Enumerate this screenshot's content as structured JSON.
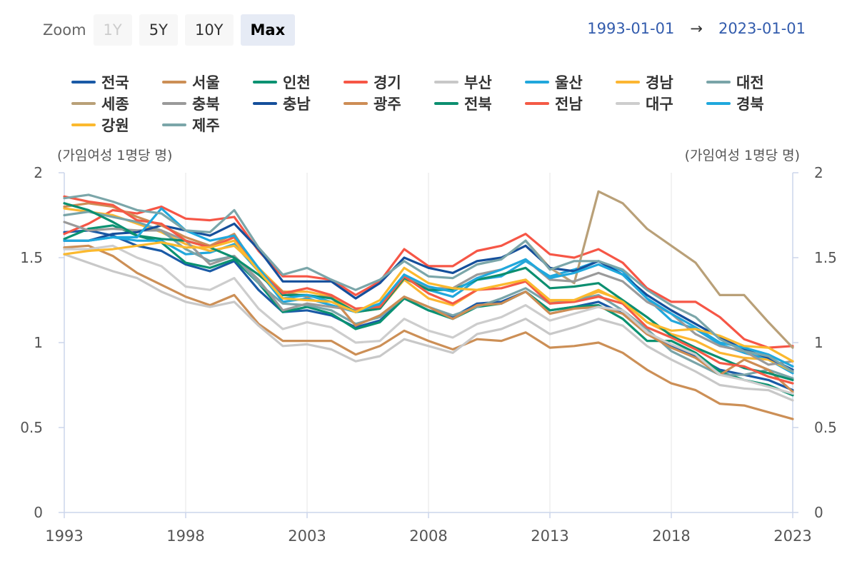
{
  "toolbar": {
    "zoom_label": "Zoom",
    "buttons": [
      {
        "label": "1Y",
        "state": "disabled"
      },
      {
        "label": "5Y",
        "state": "normal"
      },
      {
        "label": "10Y",
        "state": "normal"
      },
      {
        "label": "Max",
        "state": "active"
      }
    ],
    "range_from": "1993-01-01",
    "range_arrow": "→",
    "range_to": "2023-01-01"
  },
  "chart_data": {
    "type": "line",
    "title": "",
    "ylabel_left": "(가임여성 1명당 명)",
    "ylabel_right": "(가임여성 1명당 명)",
    "xlabel": "",
    "x": [
      1993,
      1994,
      1995,
      1996,
      1997,
      1998,
      1999,
      2000,
      2001,
      2002,
      2003,
      2004,
      2005,
      2006,
      2007,
      2008,
      2009,
      2010,
      2011,
      2012,
      2013,
      2014,
      2015,
      2016,
      2017,
      2018,
      2019,
      2020,
      2021,
      2022,
      2023
    ],
    "xlim": [
      1993,
      2023
    ],
    "ylim": [
      0,
      2
    ],
    "x_ticks": [
      1993,
      1998,
      2003,
      2008,
      2013,
      2018,
      2023
    ],
    "y_ticks": [
      0,
      0.5,
      1,
      1.5,
      2
    ],
    "y_tick_labels": [
      "0",
      "0.5",
      "1",
      "1.5",
      "2"
    ],
    "grid": "vertical",
    "legend_position": "top",
    "series": [
      {
        "name": "전국",
        "color": "#1a5aa6",
        "values": [
          1.65,
          1.66,
          1.63,
          1.57,
          1.54,
          1.46,
          1.42,
          1.48,
          1.31,
          1.18,
          1.19,
          1.16,
          1.09,
          1.13,
          1.26,
          1.19,
          1.15,
          1.23,
          1.24,
          1.3,
          1.19,
          1.21,
          1.24,
          1.17,
          1.05,
          0.98,
          0.92,
          0.84,
          0.81,
          0.78,
          0.72
        ]
      },
      {
        "name": "서울",
        "color": "#cc8f56",
        "values": [
          1.56,
          1.57,
          1.51,
          1.41,
          1.34,
          1.27,
          1.22,
          1.28,
          1.11,
          1.01,
          1.01,
          1.01,
          0.93,
          0.98,
          1.07,
          1.01,
          0.96,
          1.02,
          1.01,
          1.06,
          0.97,
          0.98,
          1.0,
          0.94,
          0.84,
          0.76,
          0.72,
          0.64,
          0.63,
          0.59,
          0.55
        ]
      },
      {
        "name": "인천",
        "color": "#0a9272",
        "values": [
          1.61,
          1.67,
          1.69,
          1.63,
          1.59,
          1.47,
          1.44,
          1.49,
          1.35,
          1.18,
          1.21,
          1.17,
          1.08,
          1.12,
          1.26,
          1.19,
          1.14,
          1.21,
          1.23,
          1.3,
          1.19,
          1.21,
          1.22,
          1.14,
          1.01,
          1.01,
          0.94,
          0.83,
          0.78,
          0.75,
          0.69
        ]
      },
      {
        "name": "경기",
        "color": "#f65646",
        "values": [
          1.64,
          1.7,
          1.78,
          1.76,
          1.8,
          1.73,
          1.72,
          1.74,
          1.54,
          1.39,
          1.39,
          1.37,
          1.28,
          1.36,
          1.55,
          1.45,
          1.45,
          1.54,
          1.57,
          1.64,
          1.52,
          1.5,
          1.55,
          1.47,
          1.32,
          1.24,
          1.24,
          1.15,
          1.02,
          0.97,
          0.98
        ]
      },
      {
        "name": "부산",
        "color": "#c8c8c8",
        "values": [
          1.52,
          1.47,
          1.42,
          1.38,
          1.3,
          1.24,
          1.21,
          1.24,
          1.1,
          0.98,
          0.99,
          0.96,
          0.89,
          0.92,
          1.02,
          0.98,
          0.94,
          1.05,
          1.08,
          1.14,
          1.05,
          1.09,
          1.14,
          1.1,
          0.98,
          0.9,
          0.83,
          0.75,
          0.73,
          0.72,
          0.66
        ]
      },
      {
        "name": "울산",
        "color": "#21a7dc",
        "values": [
          1.6,
          1.6,
          1.62,
          1.6,
          1.6,
          1.52,
          1.53,
          1.58,
          1.42,
          1.24,
          1.26,
          1.22,
          1.18,
          1.22,
          1.4,
          1.31,
          1.27,
          1.37,
          1.39,
          1.48,
          1.39,
          1.43,
          1.48,
          1.42,
          1.26,
          1.13,
          1.08,
          0.99,
          0.94,
          0.9,
          0.82
        ]
      },
      {
        "name": "경남",
        "color": "#fcb632",
        "values": [
          1.79,
          1.77,
          1.75,
          1.7,
          1.65,
          1.58,
          1.54,
          1.57,
          1.44,
          1.3,
          1.3,
          1.27,
          1.18,
          1.2,
          1.37,
          1.26,
          1.22,
          1.31,
          1.34,
          1.37,
          1.24,
          1.25,
          1.3,
          1.25,
          1.12,
          1.05,
          1.01,
          0.94,
          0.91,
          0.9,
          0.83
        ]
      },
      {
        "name": "대전",
        "color": "#79a4a8",
        "values": [
          1.75,
          1.77,
          1.74,
          1.71,
          1.66,
          1.55,
          1.48,
          1.51,
          1.35,
          1.23,
          1.22,
          1.19,
          1.11,
          1.15,
          1.27,
          1.21,
          1.16,
          1.21,
          1.26,
          1.32,
          1.23,
          1.25,
          1.28,
          1.19,
          1.08,
          0.95,
          0.88,
          0.81,
          0.81,
          0.84,
          0.79
        ]
      },
      {
        "name": "세종",
        "color": "#b9a078",
        "values": [
          null,
          null,
          null,
          null,
          null,
          null,
          null,
          null,
          null,
          null,
          null,
          null,
          null,
          null,
          null,
          null,
          null,
          null,
          null,
          1.6,
          1.44,
          1.35,
          1.89,
          1.82,
          1.67,
          1.57,
          1.47,
          1.28,
          1.28,
          1.12,
          0.97
        ]
      },
      {
        "name": "충북",
        "color": "#9a9a9a",
        "values": [
          1.71,
          1.66,
          1.67,
          1.66,
          1.66,
          1.6,
          1.46,
          1.51,
          1.37,
          1.19,
          1.23,
          1.21,
          1.19,
          1.21,
          1.39,
          1.32,
          1.32,
          1.4,
          1.43,
          1.49,
          1.37,
          1.36,
          1.41,
          1.36,
          1.24,
          1.17,
          1.05,
          0.98,
          0.95,
          0.87,
          0.89
        ]
      },
      {
        "name": "충남",
        "color": "#154f9b",
        "values": [
          1.6,
          1.6,
          1.64,
          1.65,
          1.69,
          1.66,
          1.63,
          1.7,
          1.55,
          1.36,
          1.36,
          1.36,
          1.26,
          1.35,
          1.5,
          1.44,
          1.41,
          1.48,
          1.5,
          1.57,
          1.44,
          1.42,
          1.48,
          1.4,
          1.28,
          1.19,
          1.11,
          1.03,
          0.96,
          0.91,
          0.84
        ]
      },
      {
        "name": "광주",
        "color": "#cd8d55",
        "values": [
          1.8,
          1.82,
          1.8,
          1.74,
          1.69,
          1.62,
          1.57,
          1.64,
          1.42,
          1.3,
          1.27,
          1.27,
          1.1,
          1.16,
          1.27,
          1.21,
          1.14,
          1.22,
          1.23,
          1.3,
          1.17,
          1.2,
          1.21,
          1.17,
          1.05,
          0.97,
          0.91,
          0.81,
          0.9,
          0.84,
          0.71
        ]
      },
      {
        "name": "전북",
        "color": "#0c8f70",
        "values": [
          1.82,
          1.78,
          1.71,
          1.63,
          1.61,
          1.6,
          1.56,
          1.5,
          1.4,
          1.28,
          1.28,
          1.26,
          1.18,
          1.2,
          1.38,
          1.31,
          1.31,
          1.37,
          1.4,
          1.44,
          1.32,
          1.33,
          1.35,
          1.25,
          1.15,
          1.04,
          0.97,
          0.91,
          0.85,
          0.82,
          0.78
        ]
      },
      {
        "name": "전남",
        "color": "#f45a46",
        "values": [
          1.86,
          1.83,
          1.81,
          1.72,
          1.7,
          1.6,
          1.56,
          1.62,
          1.43,
          1.29,
          1.32,
          1.28,
          1.2,
          1.21,
          1.39,
          1.29,
          1.23,
          1.31,
          1.32,
          1.36,
          1.23,
          1.24,
          1.27,
          1.23,
          1.09,
          1.03,
          0.96,
          0.88,
          0.86,
          0.8,
          0.76
        ]
      },
      {
        "name": "대구",
        "color": "#cdcdcd",
        "values": [
          1.55,
          1.55,
          1.57,
          1.5,
          1.45,
          1.33,
          1.31,
          1.38,
          1.2,
          1.08,
          1.12,
          1.09,
          1.0,
          1.01,
          1.14,
          1.07,
          1.03,
          1.11,
          1.15,
          1.22,
          1.13,
          1.17,
          1.21,
          1.19,
          1.06,
          0.99,
          0.93,
          0.81,
          0.78,
          0.74,
          0.7
        ]
      },
      {
        "name": "경북",
        "color": "#1fa8dd",
        "values": [
          1.6,
          1.6,
          1.62,
          1.62,
          1.79,
          1.66,
          1.6,
          1.63,
          1.44,
          1.26,
          1.28,
          1.24,
          1.18,
          1.23,
          1.4,
          1.33,
          1.3,
          1.38,
          1.43,
          1.49,
          1.38,
          1.41,
          1.46,
          1.4,
          1.26,
          1.17,
          1.09,
          1.0,
          0.97,
          0.93,
          0.86
        ]
      },
      {
        "name": "강원",
        "color": "#fbb92e",
        "values": [
          1.52,
          1.54,
          1.55,
          1.57,
          1.59,
          1.56,
          1.56,
          1.6,
          1.42,
          1.26,
          1.25,
          1.24,
          1.18,
          1.25,
          1.44,
          1.35,
          1.32,
          1.31,
          1.34,
          1.37,
          1.25,
          1.25,
          1.31,
          1.24,
          1.12,
          1.07,
          1.08,
          1.04,
          0.98,
          0.97,
          0.89
        ]
      },
      {
        "name": "제주",
        "color": "#7ba6a9",
        "values": [
          1.85,
          1.87,
          1.83,
          1.78,
          1.76,
          1.66,
          1.65,
          1.78,
          1.56,
          1.4,
          1.44,
          1.37,
          1.31,
          1.37,
          1.48,
          1.39,
          1.38,
          1.46,
          1.49,
          1.6,
          1.43,
          1.48,
          1.48,
          1.43,
          1.31,
          1.22,
          1.15,
          1.02,
          0.95,
          0.92,
          0.83
        ]
      }
    ]
  }
}
